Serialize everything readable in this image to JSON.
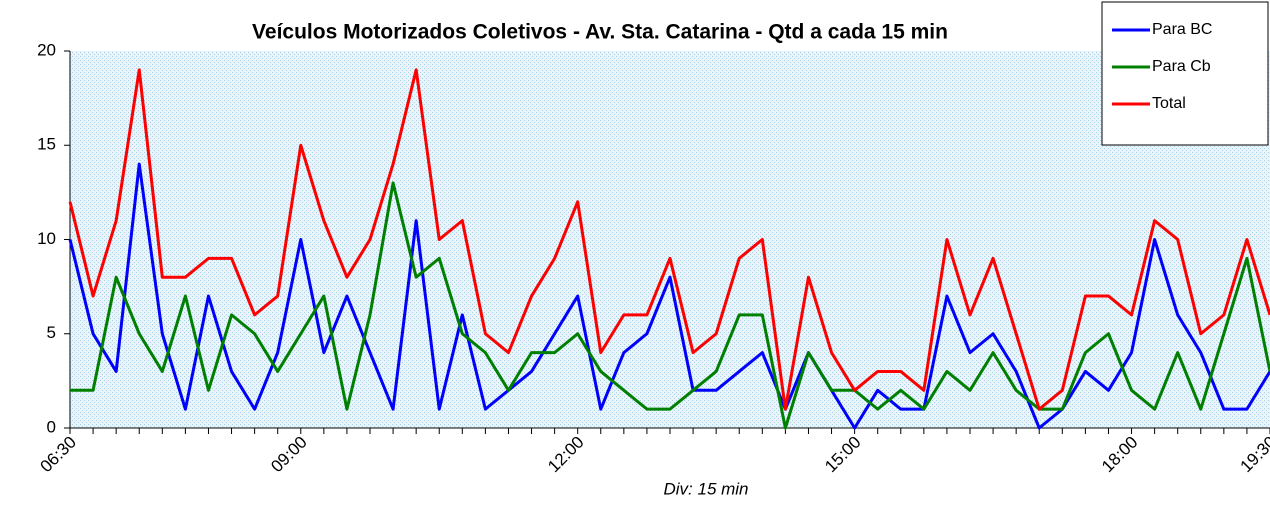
{
  "chart_data": {
    "type": "line",
    "title": "Veículos Motorizados Coletivos - Av. Sta. Catarina - Qtd a cada 15 min",
    "x_label": "Div: 15 min",
    "categories": [
      "06:30",
      null,
      null,
      null,
      null,
      null,
      null,
      null,
      null,
      null,
      "09:00",
      null,
      null,
      null,
      null,
      null,
      null,
      null,
      null,
      null,
      null,
      null,
      "12:00",
      null,
      null,
      null,
      null,
      null,
      null,
      null,
      null,
      null,
      null,
      null,
      "15:00",
      null,
      null,
      null,
      null,
      null,
      null,
      null,
      null,
      null,
      null,
      null,
      "18:00",
      null,
      null,
      null,
      null,
      null,
      "19:30"
    ],
    "series": [
      {
        "name": "Para BC",
        "color": "#0000ff",
        "values": [
          10,
          5,
          3,
          14,
          5,
          1,
          7,
          3,
          1,
          4,
          10,
          4,
          7,
          4,
          1,
          11,
          1,
          6,
          1,
          2,
          3,
          5,
          7,
          1,
          4,
          5,
          8,
          2,
          2,
          3,
          4,
          1,
          4,
          2,
          0,
          2,
          1,
          1,
          7,
          4,
          5,
          3,
          0,
          1,
          3,
          2,
          4,
          10,
          6,
          4,
          1,
          1,
          3
        ]
      },
      {
        "name": "Para Cb",
        "color": "#008000",
        "values": [
          2,
          2,
          8,
          5,
          3,
          7,
          2,
          6,
          5,
          3,
          5,
          7,
          1,
          6,
          13,
          8,
          9,
          5,
          4,
          2,
          4,
          4,
          5,
          3,
          2,
          1,
          1,
          2,
          3,
          6,
          6,
          0,
          4,
          2,
          2,
          1,
          2,
          1,
          3,
          2,
          4,
          2,
          1,
          1,
          4,
          5,
          2,
          1,
          4,
          1,
          5,
          9,
          3
        ]
      },
      {
        "name": "Total",
        "color": "#ff0000",
        "values": [
          12,
          7,
          11,
          19,
          8,
          8,
          9,
          9,
          6,
          7,
          15,
          11,
          8,
          10,
          14,
          19,
          10,
          11,
          5,
          4,
          7,
          9,
          12,
          4,
          6,
          6,
          9,
          4,
          5,
          9,
          10,
          1,
          8,
          4,
          2,
          3,
          3,
          2,
          10,
          6,
          9,
          5,
          1,
          2,
          7,
          7,
          6,
          11,
          10,
          5,
          6,
          10,
          6
        ]
      }
    ],
    "ylim": [
      0,
      20
    ],
    "yticks": [
      0,
      5,
      10,
      15,
      20
    ],
    "grid": false,
    "legend": "top-right"
  }
}
